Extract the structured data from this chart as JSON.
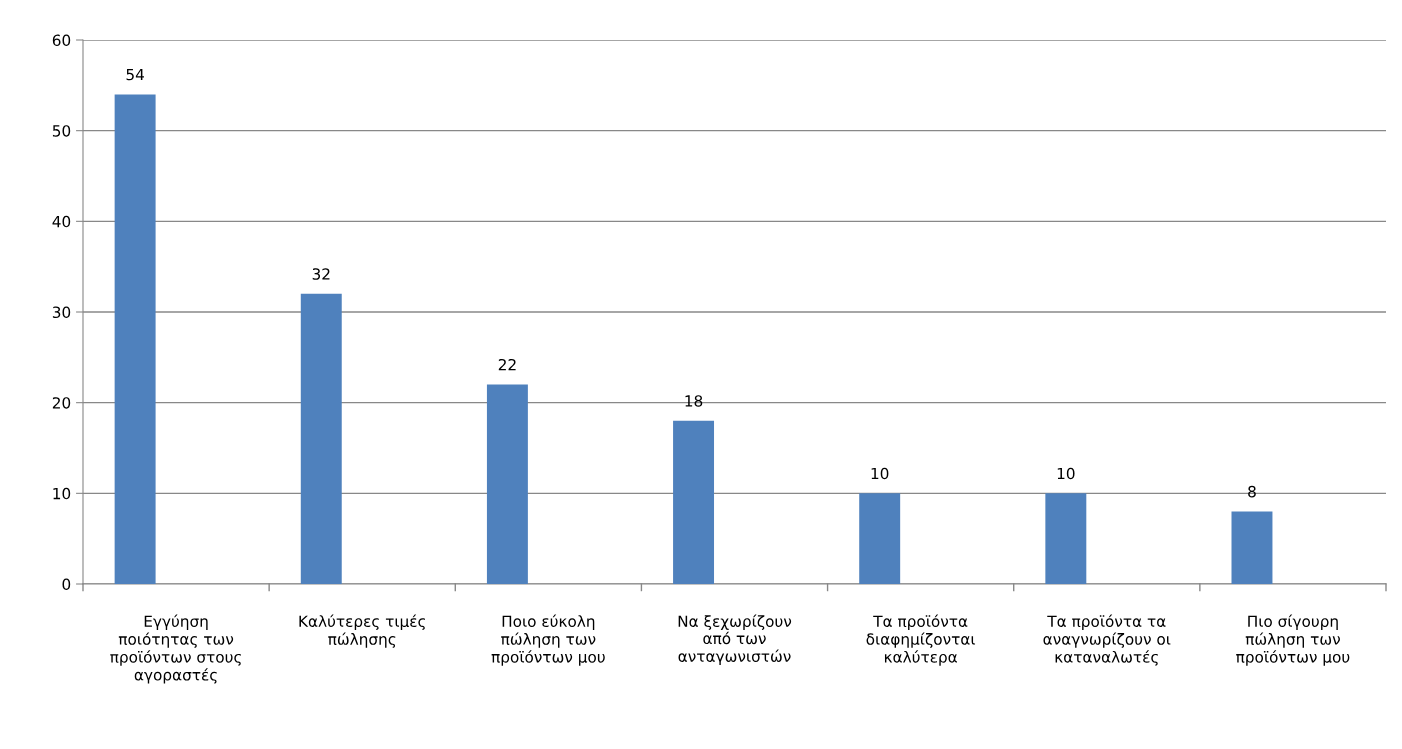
{
  "chart_data": {
    "type": "bar",
    "categories": [
      "Εγγύηση ποιότητας των προϊόντων στους αγοραστές",
      "Καλύτερες τιμές πώλησης",
      "Ποιο εύκολη πώληση των προϊόντων μου",
      "Να ξεχωρίζουν από των ανταγωνιστών",
      "Τα προϊόντα διαφημίζονται καλύτερα",
      "Τα προϊόντα τα αναγνωρίζουν οι καταναλωτές",
      "Πιο σίγουρη πώληση των προϊόντων μου"
    ],
    "values": [
      54,
      32,
      22,
      18,
      10,
      10,
      8
    ],
    "color": "#4f81bd",
    "ylim": [
      0,
      60
    ],
    "yticks": [
      0,
      10,
      20,
      30,
      40,
      50,
      60
    ],
    "grid": "y",
    "data_labels": true
  }
}
